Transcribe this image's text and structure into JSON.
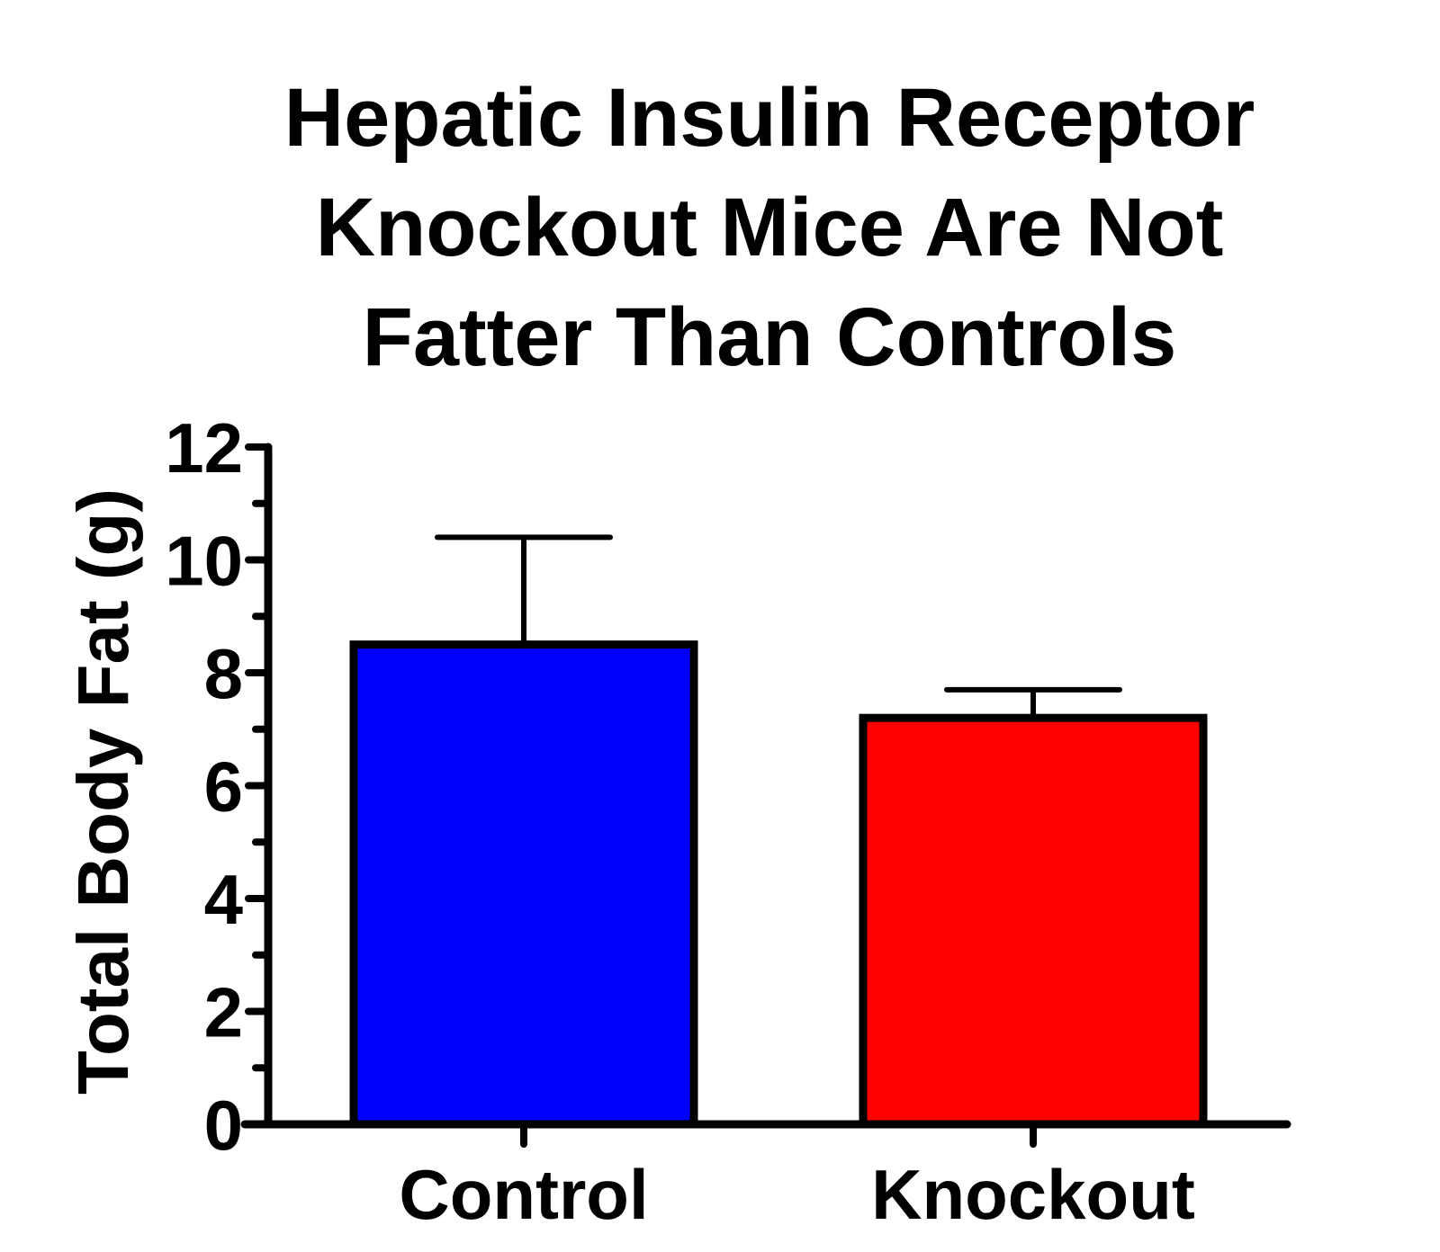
{
  "chart_data": {
    "type": "bar",
    "title_lines": [
      "Hepatic Insulin Receptor",
      "Knockout Mice Are Not",
      "Fatter Than Controls"
    ],
    "xlabel": "",
    "ylabel": "Total Body Fat (g)",
    "categories": [
      "Control",
      "Knockout"
    ],
    "values": [
      8.5,
      7.2
    ],
    "error_upper": [
      1.9,
      0.5
    ],
    "bar_colors": [
      "#0000ff",
      "#ff0000"
    ],
    "ylim": [
      0,
      12
    ],
    "yticks": [
      "0",
      "2",
      "4",
      "6",
      "8",
      "10",
      "12"
    ],
    "grid": false
  }
}
